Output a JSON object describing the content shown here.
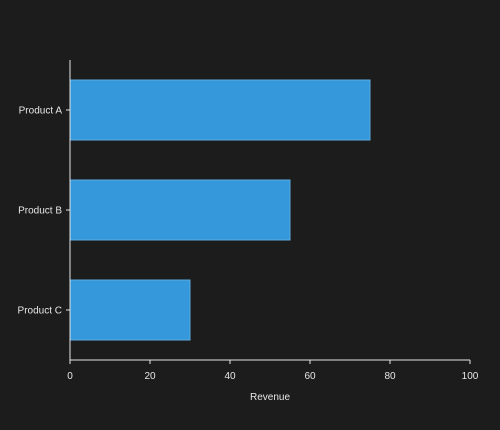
{
  "colors": {
    "background": "#1c1c1c",
    "bar_fill": "#3498db",
    "bar_stroke": "#5dade2",
    "axis": "#e6e6e6",
    "text": "#e6e6e6"
  },
  "chart_data": {
    "type": "bar",
    "orientation": "horizontal",
    "title": "",
    "xlabel": "Revenue",
    "ylabel": "",
    "categories": [
      "Product A",
      "Product B",
      "Product C"
    ],
    "values": [
      75,
      55,
      30
    ],
    "xlim": [
      0,
      100
    ],
    "xticks": [
      0,
      20,
      40,
      60,
      80,
      100
    ],
    "grid": false,
    "legend": "none"
  }
}
